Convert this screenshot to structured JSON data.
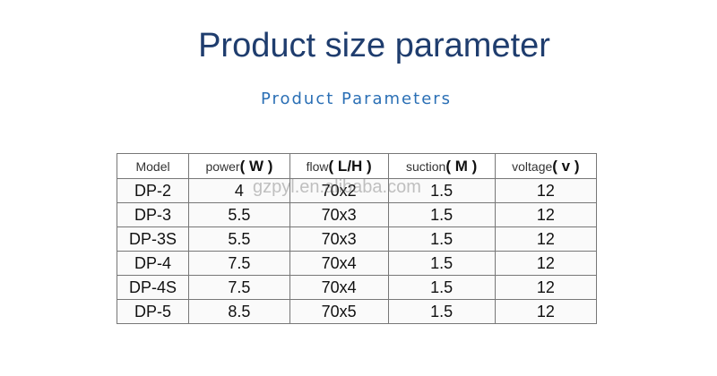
{
  "header": {
    "title": "Product size parameter",
    "subtitle": "Product Parameters"
  },
  "watermark": "gzpyl.en.alibaba.com",
  "table": {
    "columns": [
      {
        "label": "Model"
      },
      {
        "label": "power",
        "unit": "( W )"
      },
      {
        "label": "flow",
        "unit": "( L/H )"
      },
      {
        "label": "suction",
        "unit": "( M )"
      },
      {
        "label": "voltage",
        "unit": "( v )"
      }
    ],
    "rows": [
      [
        "DP-2",
        "4",
        "70x2",
        "1.5",
        "12"
      ],
      [
        "DP-3",
        "5.5",
        "70x3",
        "1.5",
        "12"
      ],
      [
        "DP-3S",
        "5.5",
        "70x3",
        "1.5",
        "12"
      ],
      [
        "DP-4",
        "7.5",
        "70x4",
        "1.5",
        "12"
      ],
      [
        "DP-4S",
        "7.5",
        "70x4",
        "1.5",
        "12"
      ],
      [
        "DP-5",
        "8.5",
        "70x5",
        "1.5",
        "12"
      ]
    ]
  }
}
